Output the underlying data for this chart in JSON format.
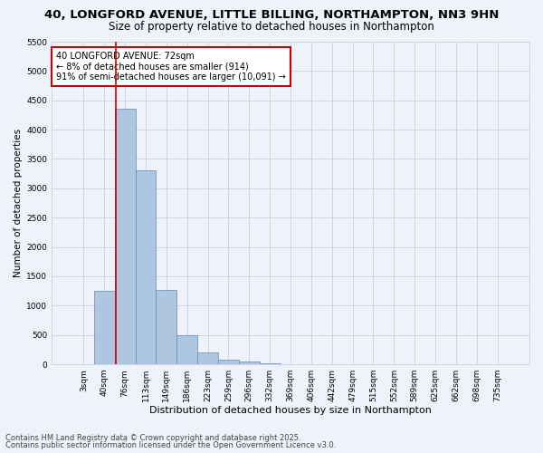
{
  "title1": "40, LONGFORD AVENUE, LITTLE BILLING, NORTHAMPTON, NN3 9HN",
  "title2": "Size of property relative to detached houses in Northampton",
  "xlabel": "Distribution of detached houses by size in Northampton",
  "ylabel": "Number of detached properties",
  "categories": [
    "3sqm",
    "40sqm",
    "76sqm",
    "113sqm",
    "149sqm",
    "186sqm",
    "223sqm",
    "259sqm",
    "296sqm",
    "332sqm",
    "369sqm",
    "406sqm",
    "442sqm",
    "479sqm",
    "515sqm",
    "552sqm",
    "589sqm",
    "625sqm",
    "662sqm",
    "698sqm",
    "735sqm"
  ],
  "values": [
    0,
    1250,
    4350,
    3300,
    1270,
    490,
    210,
    80,
    45,
    20,
    0,
    0,
    0,
    0,
    0,
    0,
    0,
    0,
    0,
    0,
    0
  ],
  "bar_color": "#aec6e0",
  "bar_edge_color": "#5b8db8",
  "background_color": "#eef2fb",
  "grid_color": "#c8d0e8",
  "vline_color": "#cc0000",
  "vline_index": 1.55,
  "annotation_lines": [
    "40 LONGFORD AVENUE: 72sqm",
    "← 8% of detached houses are smaller (914)",
    "91% of semi-detached houses are larger (10,091) →"
  ],
  "annotation_box_color": "#ffffff",
  "annotation_border_color": "#cc0000",
  "ylim": [
    0,
    5500
  ],
  "yticks": [
    0,
    500,
    1000,
    1500,
    2000,
    2500,
    3000,
    3500,
    4000,
    4500,
    5000,
    5500
  ],
  "footer1": "Contains HM Land Registry data © Crown copyright and database right 2025.",
  "footer2": "Contains public sector information licensed under the Open Government Licence v3.0.",
  "title1_fontsize": 9.5,
  "title2_fontsize": 8.5,
  "xlabel_fontsize": 8,
  "ylabel_fontsize": 7.5,
  "tick_fontsize": 6.5,
  "annotation_fontsize": 7,
  "footer_fontsize": 6
}
